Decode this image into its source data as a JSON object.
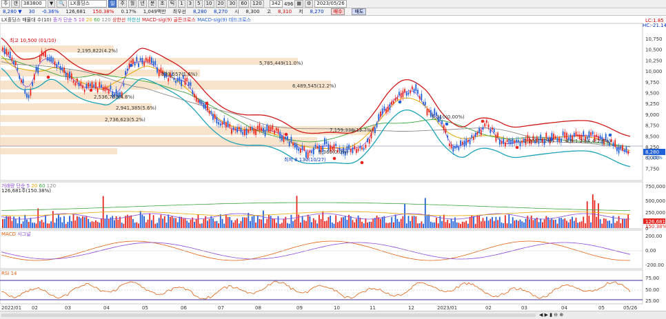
{
  "toolbar": {
    "market_label": "주",
    "period_toggle": "갠",
    "code": "383800",
    "name": "LX홀딩스",
    "period_buttons": [
      "일",
      "주",
      "월",
      "년",
      "분",
      "초",
      "틱"
    ],
    "active_period": "일",
    "interval_buttons": [
      "1",
      "3",
      "5",
      "10",
      "20",
      "30",
      "60",
      "120"
    ],
    "count": "342",
    "total": "496",
    "date": "2023/05/26"
  },
  "quote": {
    "price": "8,280",
    "arrow": "▼",
    "change": "30",
    "change_pct": "-0.36%",
    "volume": "126,681",
    "volume_ratio": "150.38%",
    "turnover_pct": "0.17%",
    "amount": "1,049백만",
    "prev_label": "최우선",
    "ask": "8,280",
    "bid": "8,270",
    "open_label": "시",
    "open": "8,300",
    "high_label": "고",
    "high": "8,310",
    "low_label": "저",
    "low": "8,270",
    "buy_button": "매수",
    "sell_button": "매도"
  },
  "legend_main": {
    "item1": "LX홀딩스 매물대 수(10)",
    "item2": "종가 단순 5",
    "item3": "10",
    "item4": "20",
    "item5": "60",
    "item6": "120",
    "item7": "상한선",
    "item8": "하한선",
    "item9": "MACD-sig(9) 골든크로스",
    "item10": "MACD-sig(9) 데드크로스"
  },
  "main_labels": {
    "max": "최고 10,500 (01/10)",
    "min": "최저 8,130(10/27)",
    "lc": "LC:1.85",
    "hc": "HC:-21.14",
    "vp1": "2,195,822(4.2%)",
    "vp2": "5,785,449(11.0%)",
    "vp3": "833,557(1.6%)",
    "vp4": "6,489,545(12.2%)",
    "vp5": "2,536,763(4.8%)",
    "vp6": "2,941,385(5.6%)",
    "vp7": "2,736,623(5.2%)",
    "vp8": "7,159,338(13.7%)",
    "vp9": "5,310(0.00%)",
    "vp10": "1,201(2.2%)",
    "vp11": "4,8(1.2%)",
    "vp12": "4,4(2.6%)",
    "vp13": "6,360(0.0%)",
    "price_tag": "8,280",
    "pct_tag": "-0.36%"
  },
  "y_axis_main": [
    "10,750",
    "10,500",
    "10,250",
    "10,000",
    "9,750",
    "9,500",
    "9,250",
    "9,000",
    "8,750",
    "8,500",
    "8,250",
    "8,000",
    "7,750"
  ],
  "legend_volume": {
    "item1": "거래량 단순 5",
    "item2": "20",
    "item3": "60",
    "item4": "120",
    "value": "126,681주(150.38%)"
  },
  "y_axis_volume": [
    "750,000",
    "500,000",
    "250,000",
    "0"
  ],
  "volume_tags": {
    "v": "126,681",
    "p": "150.38%"
  },
  "legend_macd": {
    "item1": "MACD",
    "item2": "시그널"
  },
  "y_axis_macd": [
    "200.00",
    "0.00",
    "-200.00"
  ],
  "legend_rsi": {
    "item1": "RSI 14"
  },
  "y_axis_rsi": [
    "75.00",
    "50.00",
    "25.00"
  ],
  "dates": [
    "2022/01",
    "02",
    "03",
    "04",
    "05",
    "06",
    "07",
    "08",
    "09",
    "10",
    "11",
    "12",
    "2023/01",
    "02",
    "03",
    "04",
    "05",
    "05/26"
  ],
  "colors": {
    "up": "#e8261f",
    "down": "#1f5fd8",
    "bollinger_upper": "#d01818",
    "bollinger_lower": "#1aa3b8",
    "ma5": "#8a4ad8",
    "ma20": "#e6a800",
    "ma60": "#3aa43a",
    "ma120": "#8a8a8a",
    "volume_profile": "#f6dcbc"
  }
}
